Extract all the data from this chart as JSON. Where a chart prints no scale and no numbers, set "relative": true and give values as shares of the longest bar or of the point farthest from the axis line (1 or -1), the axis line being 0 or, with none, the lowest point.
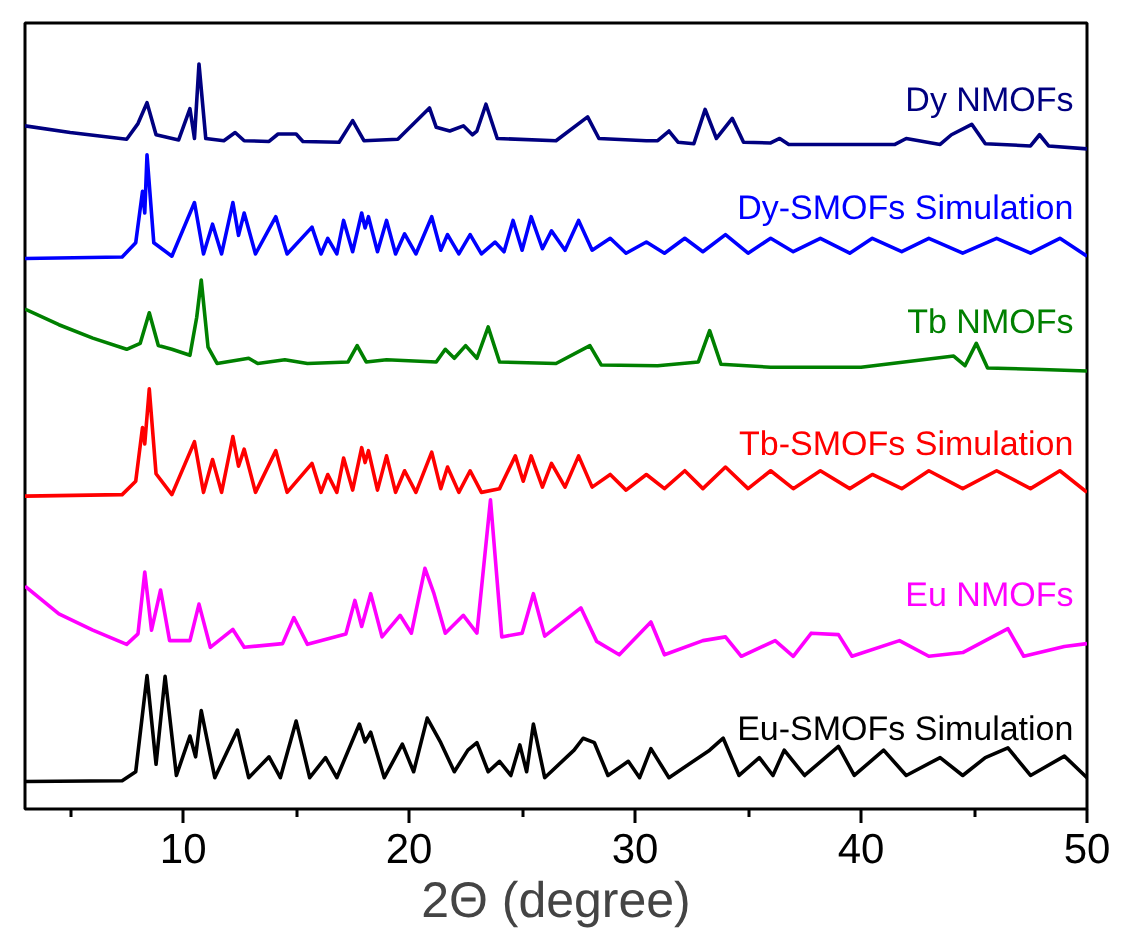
{
  "chart_data": {
    "type": "line",
    "relative": true,
    "xlabel": "2Θ (degree)",
    "xlim": [
      3,
      50
    ],
    "xticks": [
      {
        "value": 5,
        "label": null
      },
      10,
      {
        "value": 15,
        "label": null
      },
      20,
      {
        "value": 25,
        "label": null
      },
      30,
      {
        "value": 35,
        "label": null
      },
      40,
      {
        "value": 45,
        "label": null
      },
      50
    ],
    "grid": false,
    "legend": false,
    "marker": "none",
    "line_style": "solid",
    "series": [
      {
        "name": "Dy NMOFs",
        "color": "#000080",
        "x": [
          3,
          5,
          7.5,
          8.0,
          8.4,
          8.8,
          9.8,
          10.3,
          10.5,
          10.7,
          11.0,
          11.8,
          12.3,
          12.7,
          13.8,
          14.2,
          15.0,
          15.3,
          16.9,
          17.5,
          18.0,
          19.5,
          20.9,
          21.2,
          21.8,
          22.4,
          22.8,
          23.0,
          23.4,
          23.9,
          26.5,
          27.9,
          28.4,
          30.5,
          31.0,
          31.5,
          31.9,
          32.6,
          33.1,
          33.6,
          34.3,
          34.8,
          36.0,
          36.4,
          36.8,
          40.0,
          41.5,
          42.0,
          43.5,
          44.0,
          44.9,
          45.5,
          47.5,
          47.9,
          48.3,
          50
        ],
        "values": [
          0.917,
          0.908,
          0.899,
          0.92,
          0.948,
          0.905,
          0.898,
          0.94,
          0.9,
          1.0,
          0.9,
          0.897,
          0.908,
          0.897,
          0.896,
          0.906,
          0.906,
          0.896,
          0.895,
          0.924,
          0.897,
          0.899,
          0.941,
          0.915,
          0.91,
          0.917,
          0.905,
          0.91,
          0.946,
          0.9,
          0.897,
          0.929,
          0.9,
          0.897,
          0.897,
          0.91,
          0.895,
          0.893,
          0.939,
          0.9,
          0.927,
          0.895,
          0.894,
          0.9,
          0.892,
          0.892,
          0.892,
          0.9,
          0.892,
          0.905,
          0.919,
          0.893,
          0.89,
          0.905,
          0.89,
          0.886
        ]
      },
      {
        "name": "Dy-SMOFs Simulation",
        "color": "#0000ff",
        "x": [
          3,
          7.3,
          7.9,
          8.2,
          8.3,
          8.4,
          8.7,
          9.5,
          10.5,
          10.9,
          11.3,
          11.7,
          12.2,
          12.45,
          12.7,
          13.2,
          14.1,
          14.6,
          15.7,
          16.1,
          16.4,
          16.8,
          17.1,
          17.5,
          17.9,
          18.05,
          18.2,
          18.6,
          19.0,
          19.4,
          19.8,
          20.3,
          21.0,
          21.4,
          21.7,
          22.2,
          22.7,
          23.2,
          23.8,
          24.2,
          24.6,
          25.0,
          25.4,
          25.9,
          26.3,
          26.9,
          27.5,
          28.1,
          28.9,
          29.6,
          30.5,
          31.3,
          32.2,
          33.0,
          34.0,
          35.0,
          36.0,
          37.0,
          38.2,
          39.5,
          40.5,
          41.8,
          43.0,
          44.5,
          46.0,
          47.5,
          48.8,
          50
        ],
        "values": [
          0.739,
          0.741,
          0.76,
          0.829,
          0.8,
          0.878,
          0.76,
          0.742,
          0.814,
          0.745,
          0.785,
          0.745,
          0.814,
          0.77,
          0.8,
          0.745,
          0.795,
          0.745,
          0.781,
          0.745,
          0.766,
          0.745,
          0.79,
          0.748,
          0.8,
          0.78,
          0.795,
          0.748,
          0.79,
          0.745,
          0.772,
          0.745,
          0.795,
          0.75,
          0.771,
          0.745,
          0.771,
          0.745,
          0.761,
          0.748,
          0.79,
          0.75,
          0.795,
          0.752,
          0.776,
          0.75,
          0.79,
          0.75,
          0.766,
          0.746,
          0.761,
          0.746,
          0.766,
          0.748,
          0.771,
          0.746,
          0.766,
          0.748,
          0.766,
          0.746,
          0.766,
          0.748,
          0.766,
          0.746,
          0.766,
          0.746,
          0.766,
          0.742
        ]
      },
      {
        "name": "Tb NMOFs",
        "color": "#008000",
        "x": [
          3,
          4.5,
          6.0,
          7.5,
          8.1,
          8.5,
          8.9,
          9.5,
          10.3,
          10.6,
          10.8,
          11.1,
          11.5,
          12.9,
          13.3,
          14.5,
          15.5,
          17.3,
          17.7,
          18.1,
          19.0,
          21.2,
          21.6,
          22.0,
          22.5,
          23.0,
          23.5,
          24.0,
          26.5,
          28.0,
          28.5,
          31.0,
          32.8,
          33.3,
          33.8,
          36.0,
          40.0,
          44.1,
          44.6,
          45.1,
          45.6,
          48.0,
          50
        ],
        "values": [
          0.671,
          0.65,
          0.632,
          0.617,
          0.625,
          0.666,
          0.622,
          0.617,
          0.609,
          0.66,
          0.71,
          0.62,
          0.598,
          0.605,
          0.598,
          0.603,
          0.598,
          0.6,
          0.622,
          0.6,
          0.603,
          0.6,
          0.617,
          0.605,
          0.622,
          0.605,
          0.647,
          0.6,
          0.598,
          0.622,
          0.596,
          0.595,
          0.6,
          0.642,
          0.597,
          0.593,
          0.593,
          0.608,
          0.595,
          0.625,
          0.592,
          0.59,
          0.588
        ]
      },
      {
        "name": "Tb-SMOFs Simulation",
        "color": "#ff0000",
        "x": [
          3,
          7.3,
          7.9,
          8.2,
          8.3,
          8.5,
          8.8,
          9.5,
          10.5,
          10.9,
          11.3,
          11.7,
          12.2,
          12.45,
          12.7,
          13.2,
          14.1,
          14.6,
          15.7,
          16.1,
          16.4,
          16.8,
          17.1,
          17.5,
          17.9,
          18.05,
          18.2,
          18.6,
          19.0,
          19.4,
          19.8,
          20.3,
          21.0,
          21.4,
          21.7,
          22.2,
          22.7,
          23.2,
          24.0,
          24.7,
          25.05,
          25.4,
          25.9,
          26.3,
          26.9,
          27.5,
          28.1,
          28.9,
          29.6,
          30.5,
          31.3,
          32.2,
          33.0,
          34.0,
          35.0,
          36.0,
          37.0,
          38.2,
          39.5,
          40.5,
          41.8,
          43.0,
          44.5,
          46.0,
          47.5,
          48.8,
          50
        ],
        "values": [
          0.42,
          0.422,
          0.44,
          0.512,
          0.49,
          0.564,
          0.45,
          0.422,
          0.493,
          0.425,
          0.469,
          0.425,
          0.5,
          0.46,
          0.483,
          0.425,
          0.481,
          0.425,
          0.464,
          0.425,
          0.449,
          0.425,
          0.471,
          0.428,
          0.485,
          0.465,
          0.481,
          0.428,
          0.474,
          0.425,
          0.454,
          0.425,
          0.479,
          0.43,
          0.459,
          0.425,
          0.454,
          0.425,
          0.43,
          0.474,
          0.44,
          0.474,
          0.432,
          0.464,
          0.432,
          0.474,
          0.432,
          0.449,
          0.428,
          0.449,
          0.43,
          0.454,
          0.43,
          0.459,
          0.43,
          0.454,
          0.43,
          0.454,
          0.43,
          0.449,
          0.43,
          0.454,
          0.43,
          0.454,
          0.43,
          0.454,
          0.425
        ]
      },
      {
        "name": "Eu NMOFs",
        "color": "#ff00ff",
        "x": [
          3,
          4.5,
          6.0,
          7.5,
          8.0,
          8.3,
          8.6,
          9.0,
          9.4,
          10.3,
          10.7,
          11.2,
          12.2,
          12.7,
          14.4,
          14.9,
          15.5,
          17.2,
          17.6,
          17.9,
          18.3,
          18.8,
          19.6,
          20.1,
          20.7,
          21.1,
          21.6,
          22.4,
          23.0,
          23.6,
          24.1,
          25.0,
          25.5,
          26.0,
          27.6,
          28.3,
          29.3,
          30.7,
          31.3,
          33.0,
          34.0,
          34.7,
          36.2,
          37.0,
          37.8,
          39.0,
          39.6,
          41.7,
          43.0,
          44.5,
          46.5,
          47.2,
          49.0,
          50
        ],
        "values": [
          0.299,
          0.262,
          0.24,
          0.221,
          0.235,
          0.318,
          0.24,
          0.294,
          0.226,
          0.226,
          0.275,
          0.217,
          0.241,
          0.217,
          0.222,
          0.257,
          0.221,
          0.235,
          0.28,
          0.245,
          0.289,
          0.231,
          0.26,
          0.236,
          0.323,
          0.289,
          0.236,
          0.26,
          0.236,
          0.415,
          0.231,
          0.236,
          0.289,
          0.232,
          0.27,
          0.225,
          0.207,
          0.251,
          0.207,
          0.226,
          0.231,
          0.205,
          0.226,
          0.205,
          0.236,
          0.234,
          0.205,
          0.226,
          0.205,
          0.21,
          0.242,
          0.205,
          0.218,
          0.222
        ]
      },
      {
        "name": "Eu-SMOFs Simulation",
        "color": "#000000",
        "x": [
          3,
          7.3,
          7.9,
          8.4,
          8.8,
          9.2,
          9.7,
          10.3,
          10.55,
          10.8,
          11.4,
          12.4,
          12.9,
          13.8,
          14.3,
          15.0,
          15.6,
          16.3,
          16.8,
          17.8,
          18.05,
          18.3,
          18.9,
          19.7,
          20.2,
          20.8,
          21.4,
          22.0,
          22.6,
          23.0,
          23.5,
          24.0,
          24.5,
          24.9,
          25.2,
          25.5,
          26.0,
          27.3,
          27.7,
          28.2,
          28.8,
          29.7,
          30.2,
          30.7,
          31.5,
          33.3,
          33.9,
          34.6,
          35.5,
          36.1,
          36.6,
          37.5,
          39.0,
          39.7,
          41.0,
          42.0,
          43.5,
          44.5,
          45.5,
          46.5,
          47.5,
          49.0,
          50
        ],
        "values": [
          0.037,
          0.038,
          0.05,
          0.179,
          0.06,
          0.178,
          0.045,
          0.098,
          0.07,
          0.132,
          0.042,
          0.106,
          0.042,
          0.07,
          0.042,
          0.118,
          0.042,
          0.069,
          0.042,
          0.114,
          0.09,
          0.103,
          0.042,
          0.087,
          0.05,
          0.122,
          0.089,
          0.05,
          0.079,
          0.089,
          0.05,
          0.064,
          0.045,
          0.086,
          0.05,
          0.114,
          0.042,
          0.079,
          0.095,
          0.089,
          0.045,
          0.064,
          0.042,
          0.081,
          0.042,
          0.079,
          0.095,
          0.045,
          0.069,
          0.045,
          0.079,
          0.045,
          0.084,
          0.045,
          0.079,
          0.045,
          0.069,
          0.045,
          0.069,
          0.082,
          0.045,
          0.071,
          0.042
        ]
      }
    ]
  }
}
